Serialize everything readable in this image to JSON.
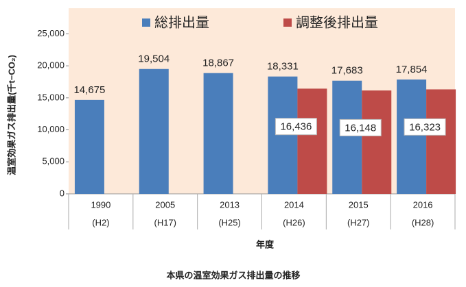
{
  "chart_data": {
    "type": "bar",
    "title": "本県の温室効果ガス排出量の推移",
    "x_label": "年度",
    "y_label": "温室効果ガス排出量(千t−CO₂)",
    "categories": [
      [
        "1990",
        "(H2)"
      ],
      [
        "2005",
        "(H17)"
      ],
      [
        "2013",
        "(H25)"
      ],
      [
        "2014",
        "(H26)"
      ],
      [
        "2015",
        "(H27)"
      ],
      [
        "2016",
        "(H28)"
      ]
    ],
    "series": [
      {
        "name": "総排出量",
        "color": "#4a7ebb",
        "values": [
          14675,
          19504,
          18867,
          18331,
          17683,
          17854
        ],
        "value_labels": [
          "14,675",
          "19,504",
          "18,867",
          "18,331",
          "17,683",
          "17,854"
        ]
      },
      {
        "name": "調整後排出量",
        "color": "#be4b48",
        "values": [
          null,
          null,
          null,
          16436,
          16148,
          16323
        ],
        "value_labels": [
          null,
          null,
          null,
          "16,436",
          "16,148",
          "16,323"
        ]
      }
    ],
    "ylim": [
      0,
      29000
    ],
    "yticks": [
      0,
      {
        "value": 5000,
        "label": "5,000"
      },
      {
        "value": 10000,
        "label": "10,000"
      },
      {
        "value": 15000,
        "label": "15,000"
      },
      {
        "value": 20000,
        "label": "20,000"
      },
      {
        "value": 25000,
        "label": "25,000"
      }
    ],
    "background": "#fde9d9"
  }
}
